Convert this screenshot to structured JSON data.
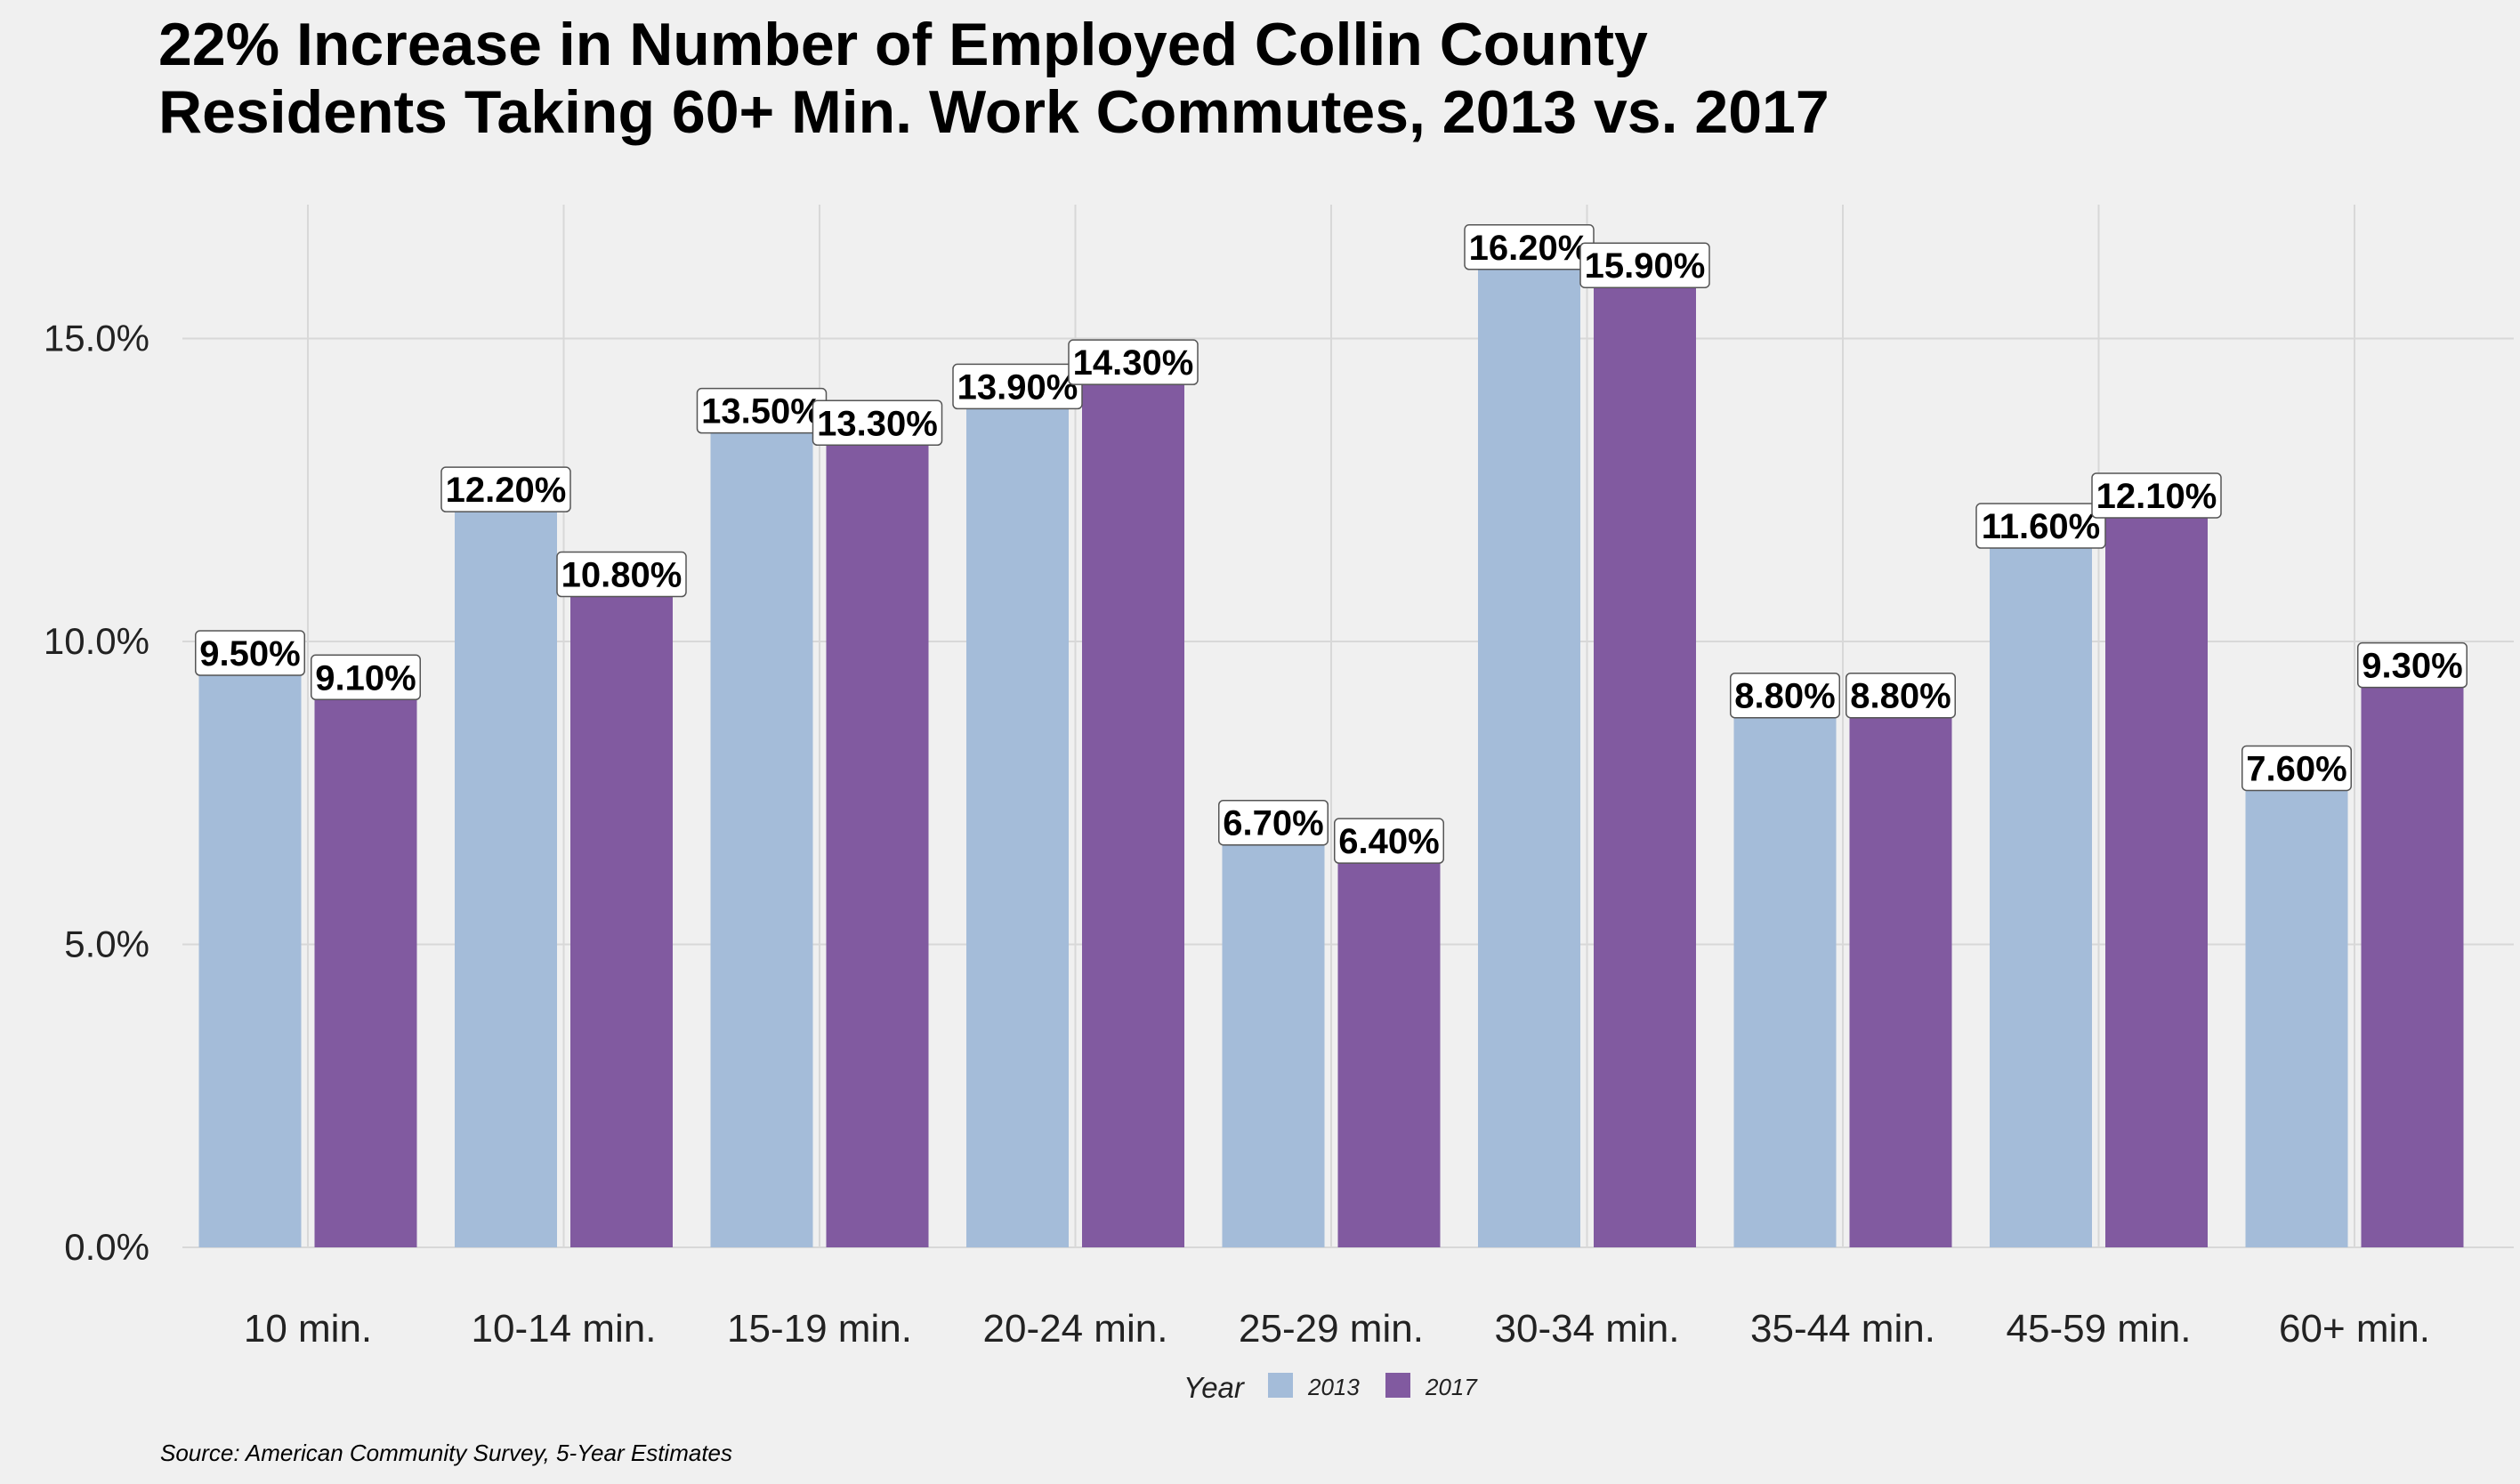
{
  "title_lines": [
    "22% Increase in Number of Employed Collin County",
    "Residents Taking 60+ Min. Work Commutes, 2013 vs. 2017"
  ],
  "source": "Source: American Community Survey, 5-Year Estimates",
  "legend": {
    "title": "Year"
  },
  "colors": {
    "2013": "#a4bcd9",
    "2017": "#815aa0",
    "background": "#f0f0f0",
    "grid": "#d8d8d8"
  },
  "chart_data": {
    "type": "bar",
    "categories": [
      "10 min.",
      "10-14 min.",
      "15-19 min.",
      "20-24 min.",
      "25-29 min.",
      "30-34 min.",
      "35-44 min.",
      "45-59 min.",
      "60+ min."
    ],
    "series": [
      {
        "name": "2013",
        "values": [
          9.5,
          12.2,
          13.5,
          13.9,
          6.7,
          16.2,
          8.8,
          11.6,
          7.6
        ],
        "labels": [
          "9.50%",
          "12.20%",
          "13.50%",
          "13.90%",
          "6.70%",
          "16.20%",
          "8.80%",
          "11.60%",
          "7.60%"
        ]
      },
      {
        "name": "2017",
        "values": [
          9.1,
          10.8,
          13.3,
          14.3,
          6.4,
          15.9,
          8.8,
          12.1,
          9.3
        ],
        "labels": [
          "9.10%",
          "10.80%",
          "13.30%",
          "14.30%",
          "6.40%",
          "15.90%",
          "8.80%",
          "12.10%",
          "9.30%"
        ]
      }
    ],
    "yticks": [
      0,
      5,
      10,
      15
    ],
    "ytick_labels": [
      "0.0%",
      "5.0%",
      "10.0%",
      "15.0%"
    ],
    "ylim": [
      0,
      17
    ],
    "legend_position": "bottom",
    "grid": true
  }
}
